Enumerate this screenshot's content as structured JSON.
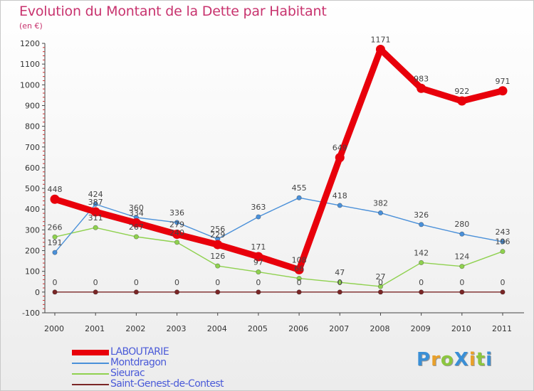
{
  "title": "Evolution du Montant de la Dette par Habitant",
  "subtitle": "(en €)",
  "brand": {
    "text": "ProXiti",
    "letter_colors": [
      "#3a8fd6",
      "#e8a02a",
      "#8cc63f",
      "#3a8fd6",
      "#e8a02a",
      "#8cc63f",
      "#3a8fd6"
    ]
  },
  "chart_data": {
    "type": "line",
    "x": [
      "2000",
      "2001",
      "2002",
      "2003",
      "2004",
      "2005",
      "2006",
      "2007",
      "2008",
      "2009",
      "2010",
      "2011"
    ],
    "ylim": [
      -100,
      1200
    ],
    "yticks": [
      -100,
      0,
      100,
      200,
      300,
      400,
      500,
      600,
      700,
      800,
      900,
      1000,
      1100,
      1200
    ],
    "grid": false,
    "legend_position": "bottom-left",
    "series": [
      {
        "name": "LABOUTARIE",
        "color": "#e8000b",
        "values": [
          448,
          387,
          334,
          279,
          229,
          171,
          108,
          649,
          1171,
          983,
          922,
          971
        ],
        "labels": [
          "448",
          "387",
          "334",
          "279",
          "229",
          "171",
          "108",
          "649",
          "1171",
          "983",
          "922",
          "971"
        ]
      },
      {
        "name": "Montdragon",
        "color": "#4a90d9",
        "values": [
          191,
          424,
          360,
          336,
          256,
          363,
          455,
          418,
          382,
          326,
          280,
          243
        ],
        "labels": [
          "191",
          "424",
          "360",
          "336",
          "256",
          "363",
          "455",
          "418",
          "382",
          "326",
          "280",
          "243"
        ]
      },
      {
        "name": "Sieurac",
        "color": "#8fd14f",
        "values": [
          266,
          311,
          267,
          240,
          126,
          97,
          66,
          47,
          27,
          142,
          124,
          196
        ],
        "labels": [
          "266",
          "311",
          "267",
          "240",
          "126",
          "97",
          "66",
          "47",
          "27",
          "142",
          "124",
          "196"
        ]
      },
      {
        "name": "Saint-Genest-de-Contest",
        "color": "#7a2626",
        "values": [
          0,
          0,
          0,
          0,
          0,
          0,
          0,
          0,
          0,
          0,
          0,
          0
        ],
        "labels": [
          "0",
          "0",
          "0",
          "0",
          "0",
          "0",
          "0",
          "0",
          "0",
          "0",
          "0",
          "0"
        ]
      }
    ]
  }
}
